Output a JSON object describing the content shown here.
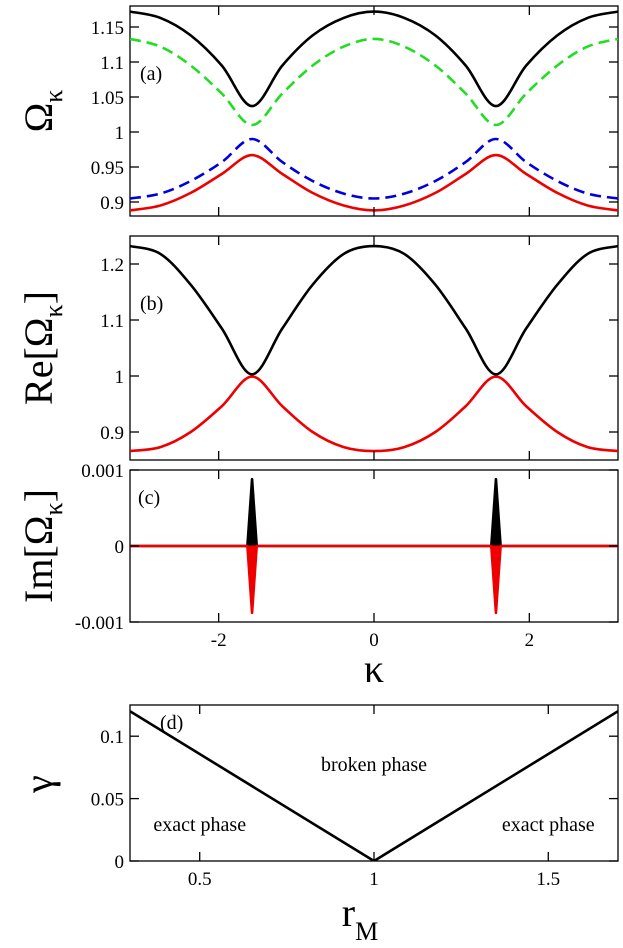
{
  "chart_data": [
    {
      "id": "a",
      "type": "line",
      "panel_label": "(a)",
      "ylabel": "Ω",
      "ylabel_sub": "κ",
      "xlim": [
        -3.14159,
        3.14159
      ],
      "ylim": [
        0.88,
        1.18
      ],
      "yticks": [
        0.9,
        0.95,
        1.0,
        1.05,
        1.1,
        1.15
      ],
      "ytick_labels": [
        "0.9",
        "0.95",
        "1",
        "1.05",
        "1.1",
        "1.15"
      ],
      "series": [
        {
          "color": "#000000",
          "dash": false,
          "x": [
            -3.1416,
            -2.75,
            -2.36,
            -1.96,
            -1.57,
            -1.18,
            -0.79,
            -0.39,
            0,
            0.39,
            0.79,
            1.18,
            1.57,
            1.96,
            2.36,
            2.75,
            3.1416
          ],
          "y": [
            1.172,
            1.163,
            1.138,
            1.095,
            1.037,
            1.095,
            1.138,
            1.163,
            1.172,
            1.163,
            1.138,
            1.095,
            1.037,
            1.095,
            1.138,
            1.163,
            1.172
          ]
        },
        {
          "color": "#22dd22",
          "dash": true,
          "x": [
            -3.1416,
            -2.75,
            -2.36,
            -1.96,
            -1.57,
            -1.18,
            -0.79,
            -0.39,
            0,
            0.39,
            0.79,
            1.18,
            1.57,
            1.96,
            2.36,
            2.75,
            3.1416
          ],
          "y": [
            1.133,
            1.122,
            1.095,
            1.055,
            1.01,
            1.055,
            1.095,
            1.122,
            1.133,
            1.122,
            1.095,
            1.055,
            1.01,
            1.055,
            1.095,
            1.122,
            1.133
          ]
        },
        {
          "color": "#0000dd",
          "dash": true,
          "x": [
            -3.1416,
            -2.75,
            -2.36,
            -1.96,
            -1.57,
            -1.18,
            -0.79,
            -0.39,
            0,
            0.39,
            0.79,
            1.18,
            1.57,
            1.96,
            2.36,
            2.75,
            3.1416
          ],
          "y": [
            0.905,
            0.912,
            0.93,
            0.957,
            0.99,
            0.957,
            0.93,
            0.912,
            0.905,
            0.912,
            0.93,
            0.957,
            0.99,
            0.957,
            0.93,
            0.912,
            0.905
          ]
        },
        {
          "color": "#ee0000",
          "dash": false,
          "x": [
            -3.1416,
            -2.75,
            -2.36,
            -1.96,
            -1.57,
            -1.18,
            -0.79,
            -0.39,
            0,
            0.39,
            0.79,
            1.18,
            1.57,
            1.96,
            2.36,
            2.75,
            3.1416
          ],
          "y": [
            0.888,
            0.895,
            0.913,
            0.94,
            0.967,
            0.94,
            0.913,
            0.895,
            0.888,
            0.895,
            0.913,
            0.94,
            0.967,
            0.94,
            0.913,
            0.895,
            0.888
          ]
        }
      ]
    },
    {
      "id": "b",
      "type": "line",
      "panel_label": "(b)",
      "ylabel": "Re[Ω",
      "ylabel_sub": "κ",
      "ylabel_end": "]",
      "xlim": [
        -3.14159,
        3.14159
      ],
      "ylim": [
        0.85,
        1.25
      ],
      "yticks": [
        0.9,
        1.0,
        1.1,
        1.2
      ],
      "ytick_labels": [
        "0.9",
        "1",
        "1.1",
        "1.2"
      ],
      "series": [
        {
          "color": "#000000",
          "dash": false,
          "x": [
            -3.1416,
            -2.75,
            -2.36,
            -1.96,
            -1.57,
            -1.18,
            -0.79,
            -0.39,
            0,
            0.39,
            0.79,
            1.18,
            1.57,
            1.96,
            2.36,
            2.75,
            3.1416
          ],
          "y": [
            1.232,
            1.218,
            1.163,
            1.085,
            1.003,
            1.085,
            1.163,
            1.218,
            1.232,
            1.218,
            1.163,
            1.085,
            1.003,
            1.085,
            1.163,
            1.218,
            1.232
          ]
        },
        {
          "color": "#ee0000",
          "dash": false,
          "x": [
            -3.1416,
            -2.75,
            -2.36,
            -1.96,
            -1.57,
            -1.18,
            -0.79,
            -0.39,
            0,
            0.39,
            0.79,
            1.18,
            1.57,
            1.96,
            2.36,
            2.75,
            3.1416
          ],
          "y": [
            0.866,
            0.873,
            0.9,
            0.946,
            0.999,
            0.946,
            0.9,
            0.873,
            0.866,
            0.873,
            0.9,
            0.946,
            0.999,
            0.946,
            0.9,
            0.873,
            0.866
          ]
        }
      ]
    },
    {
      "id": "c",
      "type": "line",
      "panel_label": "(c)",
      "ylabel": "Im[Ω",
      "ylabel_sub": "κ",
      "ylabel_end": "]",
      "xlabel": "κ",
      "xlim": [
        -3.14159,
        3.14159
      ],
      "ylim": [
        -0.001,
        0.001
      ],
      "yticks": [
        -0.001,
        0,
        0.001
      ],
      "ytick_labels": [
        "-0.001",
        "0",
        "0.001"
      ],
      "xticks": [
        -2,
        0,
        2
      ],
      "xtick_labels": [
        "-2",
        "0",
        "2"
      ],
      "series": [
        {
          "color": "#000000",
          "dash": false,
          "x": [
            -3.1416,
            -1.63,
            -1.57,
            -1.51,
            1.51,
            1.57,
            1.63,
            3.1416
          ],
          "y": [
            0,
            0,
            0.00088,
            0,
            0,
            0.00088,
            0,
            0
          ]
        },
        {
          "color": "#ee0000",
          "dash": false,
          "x": [
            -3.1416,
            -1.63,
            -1.57,
            -1.51,
            1.51,
            1.57,
            1.63,
            3.1416
          ],
          "y": [
            0,
            0,
            -0.00088,
            0,
            0,
            -0.00088,
            0,
            0
          ]
        }
      ]
    },
    {
      "id": "d",
      "type": "line",
      "panel_label": "(d)",
      "ylabel": "γ",
      "xlabel": "r",
      "xlabel_sub": "M",
      "xlim": [
        0.3,
        1.7
      ],
      "ylim": [
        0,
        0.125
      ],
      "yticks": [
        0,
        0.05,
        0.1
      ],
      "ytick_labels": [
        "0",
        "0.05",
        "0.1"
      ],
      "xticks": [
        0.5,
        1,
        1.5
      ],
      "xtick_labels": [
        "0.5",
        "1",
        "1.5"
      ],
      "annotations": [
        {
          "text": "broken phase",
          "x": 1.0,
          "y": 0.072
        },
        {
          "text": "exact phase",
          "x": 0.5,
          "y": 0.024
        },
        {
          "text": "exact phase",
          "x": 1.5,
          "y": 0.024
        }
      ],
      "series": [
        {
          "color": "#000000",
          "dash": false,
          "x": [
            0.3,
            1.0,
            1.7
          ],
          "y": [
            0.12,
            0.0,
            0.12
          ]
        }
      ]
    }
  ]
}
